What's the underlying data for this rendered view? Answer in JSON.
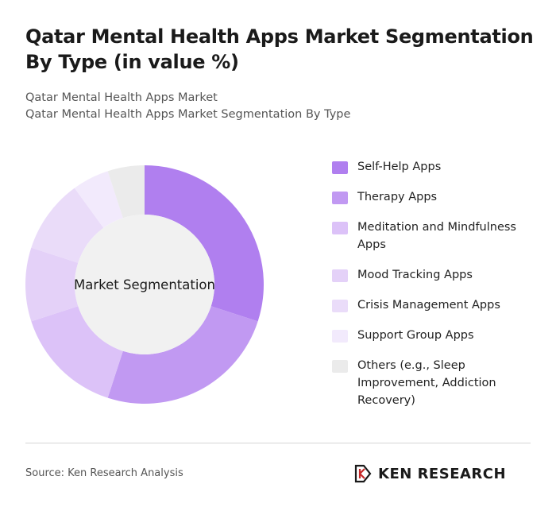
{
  "header": {
    "title": "Qatar Mental Health Apps Market Segmentation By Type (in value %)",
    "subtitle_line1": "Qatar Mental Health Apps Market",
    "subtitle_line2": "Qatar Mental Health Apps Market Segmentation By Type"
  },
  "chart_data": {
    "type": "pie",
    "center_label": "Market Segmentation",
    "categories": [
      "Self-Help Apps",
      "Therapy Apps",
      "Meditation and Mindfulness Apps",
      "Mood Tracking Apps",
      "Crisis Management Apps",
      "Support Group Apps",
      "Others (e.g., Sleep Improvement, Addiction Recovery)"
    ],
    "values": [
      30,
      25,
      15,
      10,
      10,
      5,
      5
    ],
    "colors": [
      "#b07fef",
      "#c199f2",
      "#dcc2f8",
      "#e4d1f8",
      "#eadcf9",
      "#f2eafc",
      "#ebebeb"
    ],
    "legend_position": "right"
  },
  "footer": {
    "source": "Source: Ken Research Analysis",
    "logo_text": "KEN RESEARCH"
  }
}
